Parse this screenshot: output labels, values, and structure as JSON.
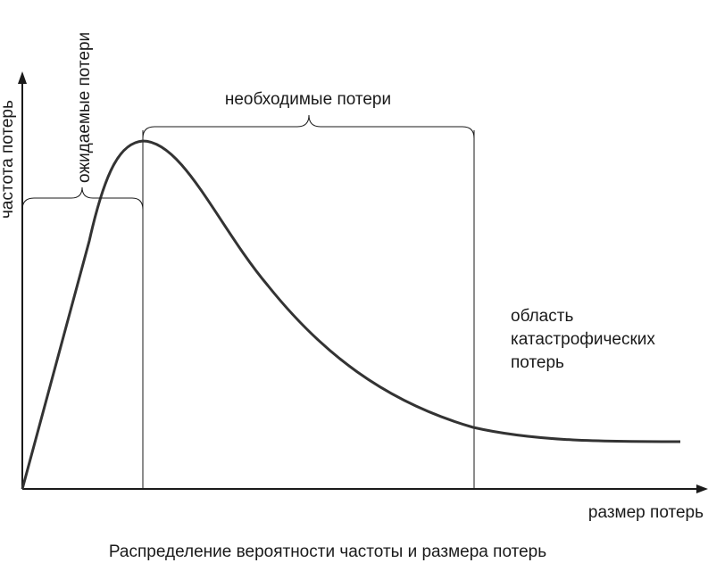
{
  "diagram": {
    "caption": "Распределение вероятности частоты и размера потерь",
    "y_axis_label": "частота потерь",
    "x_axis_label": "размер потерь",
    "region_expected": "ожидаемые потери",
    "region_necessary": "необходимые потери",
    "region_catastrophic": [
      "область",
      "катастрофических",
      "потерь"
    ]
  }
}
